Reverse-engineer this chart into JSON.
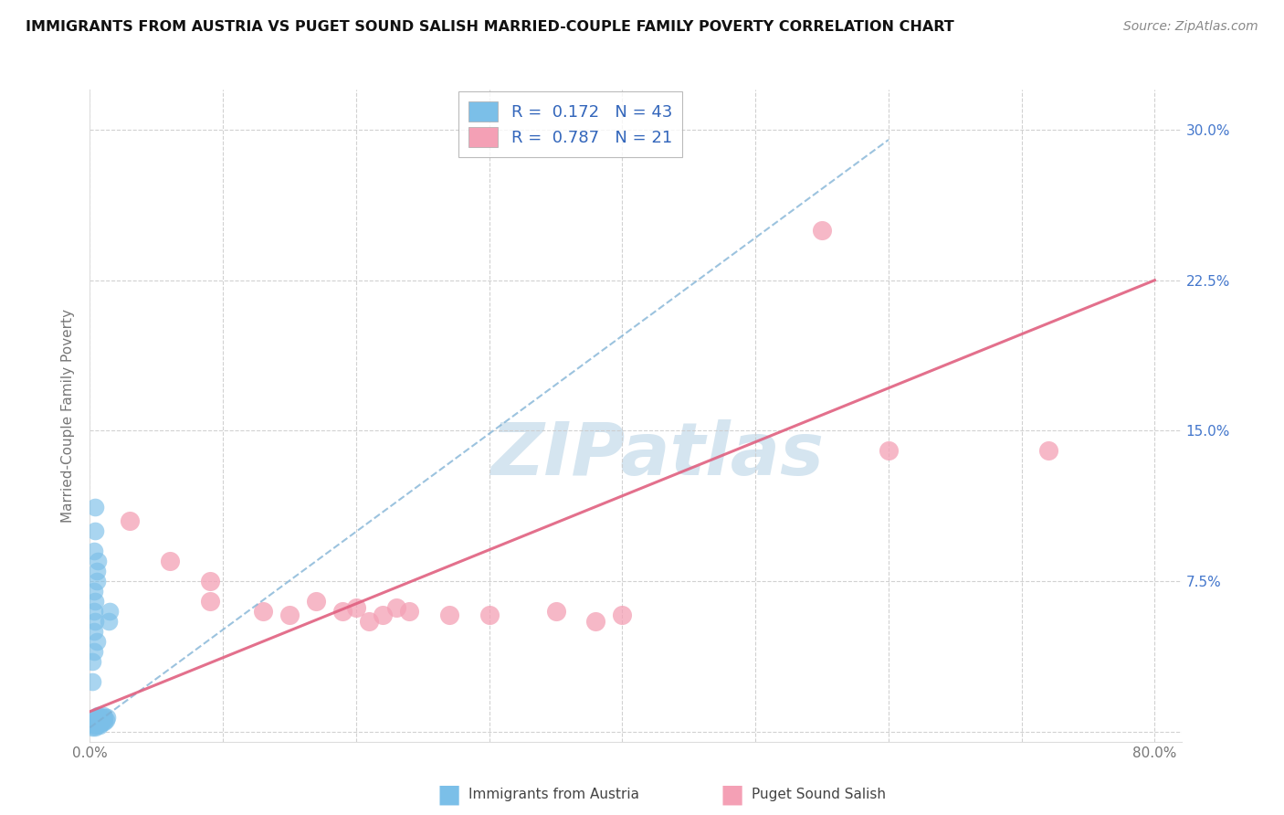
{
  "title": "IMMIGRANTS FROM AUSTRIA VS PUGET SOUND SALISH MARRIED-COUPLE FAMILY POVERTY CORRELATION CHART",
  "source": "Source: ZipAtlas.com",
  "ylabel": "Married-Couple Family Poverty",
  "xlim": [
    0.0,
    0.82
  ],
  "ylim": [
    -0.005,
    0.32
  ],
  "xticks": [
    0.0,
    0.1,
    0.2,
    0.3,
    0.4,
    0.5,
    0.6,
    0.7,
    0.8
  ],
  "yticks": [
    0.0,
    0.075,
    0.15,
    0.225,
    0.3
  ],
  "yticklabels_right": [
    "",
    "7.5%",
    "15.0%",
    "22.5%",
    "30.0%"
  ],
  "legend1_label": "Immigrants from Austria",
  "legend2_label": "Puget Sound Salish",
  "R1": 0.172,
  "N1": 43,
  "R2": 0.787,
  "N2": 21,
  "color_blue": "#7bbfe8",
  "color_pink": "#f4a0b5",
  "trendline1_color": "#7bafd4",
  "trendline2_color": "#e06080",
  "watermark_color": "#d5e5f0",
  "blue_dots": [
    [
      0.002,
      0.002
    ],
    [
      0.002,
      0.004
    ],
    [
      0.003,
      0.003
    ],
    [
      0.003,
      0.005
    ],
    [
      0.004,
      0.002
    ],
    [
      0.004,
      0.004
    ],
    [
      0.004,
      0.006
    ],
    [
      0.005,
      0.003
    ],
    [
      0.005,
      0.005
    ],
    [
      0.005,
      0.007
    ],
    [
      0.006,
      0.004
    ],
    [
      0.006,
      0.006
    ],
    [
      0.006,
      0.008
    ],
    [
      0.007,
      0.003
    ],
    [
      0.007,
      0.005
    ],
    [
      0.007,
      0.007
    ],
    [
      0.008,
      0.004
    ],
    [
      0.008,
      0.006
    ],
    [
      0.009,
      0.005
    ],
    [
      0.009,
      0.007
    ],
    [
      0.01,
      0.006
    ],
    [
      0.01,
      0.008
    ],
    [
      0.011,
      0.005
    ],
    [
      0.011,
      0.007
    ],
    [
      0.012,
      0.006
    ],
    [
      0.013,
      0.007
    ],
    [
      0.014,
      0.055
    ],
    [
      0.015,
      0.06
    ],
    [
      0.003,
      0.09
    ],
    [
      0.004,
      0.1
    ],
    [
      0.004,
      0.112
    ],
    [
      0.005,
      0.08
    ],
    [
      0.003,
      0.06
    ],
    [
      0.003,
      0.07
    ],
    [
      0.004,
      0.065
    ],
    [
      0.005,
      0.075
    ],
    [
      0.006,
      0.085
    ],
    [
      0.003,
      0.05
    ],
    [
      0.004,
      0.055
    ],
    [
      0.005,
      0.045
    ],
    [
      0.002,
      0.035
    ],
    [
      0.003,
      0.04
    ],
    [
      0.002,
      0.025
    ]
  ],
  "pink_dots": [
    [
      0.03,
      0.105
    ],
    [
      0.06,
      0.085
    ],
    [
      0.09,
      0.065
    ],
    [
      0.09,
      0.075
    ],
    [
      0.13,
      0.06
    ],
    [
      0.15,
      0.058
    ],
    [
      0.17,
      0.065
    ],
    [
      0.19,
      0.06
    ],
    [
      0.2,
      0.062
    ],
    [
      0.21,
      0.055
    ],
    [
      0.22,
      0.058
    ],
    [
      0.23,
      0.062
    ],
    [
      0.24,
      0.06
    ],
    [
      0.27,
      0.058
    ],
    [
      0.3,
      0.058
    ],
    [
      0.35,
      0.06
    ],
    [
      0.38,
      0.055
    ],
    [
      0.4,
      0.058
    ],
    [
      0.55,
      0.25
    ],
    [
      0.6,
      0.14
    ],
    [
      0.72,
      0.14
    ]
  ],
  "trendline1_x": [
    0.0,
    0.6
  ],
  "trendline1_y": [
    0.002,
    0.295
  ],
  "trendline2_x": [
    0.0,
    0.8
  ],
  "trendline2_y": [
    0.01,
    0.225
  ],
  "bg_color": "#ffffff",
  "grid_color": "#cccccc",
  "grid_style": "--"
}
